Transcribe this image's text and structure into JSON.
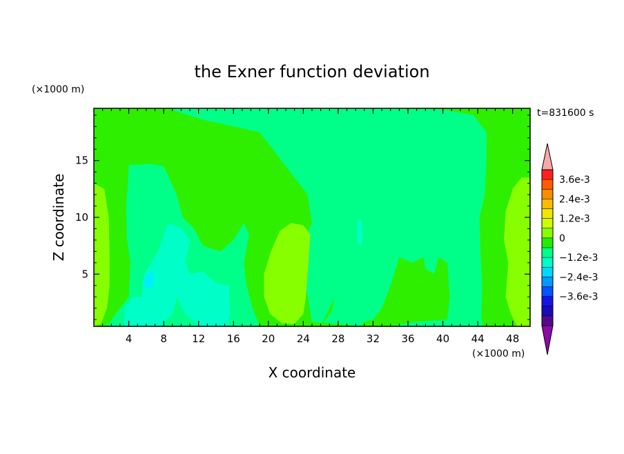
{
  "chart_data": {
    "type": "heatmap",
    "title": "the Exner function deviation",
    "xlabel": "X coordinate",
    "ylabel": "Z coordinate",
    "x_unit": "(×1000 m)",
    "y_unit": "(×1000 m)",
    "time_label": "t=831600 s",
    "xlim": [
      0,
      50
    ],
    "ylim": [
      0.4,
      19.6
    ],
    "x_ticks": [
      4,
      8,
      12,
      16,
      20,
      24,
      28,
      32,
      36,
      40,
      44,
      48
    ],
    "y_ticks": [
      5,
      10,
      15
    ],
    "colorbar": {
      "labels": [
        "3.6e-3",
        "2.4e-3",
        "1.2e-3",
        "0",
        "−1.2e-3",
        "−2.4e-3",
        "−3.6e-3"
      ],
      "levels": [
        0.0036,
        0.0024,
        0.0012,
        0,
        -0.0012,
        -0.0024,
        -0.0036
      ],
      "colors": [
        "#ff2020",
        "#ff5a00",
        "#ff8c00",
        "#ffbb00",
        "#f0e600",
        "#ccff00",
        "#88ff00",
        "#22ee00",
        "#00ff88",
        "#00ffc8",
        "#00d8ff",
        "#0099ff",
        "#0055ff",
        "#1515e8",
        "#1a0ab8",
        "#55098a"
      ],
      "over_color": "#f7a9a9",
      "under_color": "#8b0aa8"
    },
    "fill_colors": {
      "background": "#2eef00",
      "cyan_green": "#00ff88",
      "aqua": "#00ffc8",
      "cyan": "#00f0ff",
      "yellow_green": "#88ff00"
    },
    "regions": [
      {
        "level": "cyan_green",
        "points": [
          [
            8.5,
            19.6
          ],
          [
            30,
            19.6
          ],
          [
            40,
            19.5
          ],
          [
            43.5,
            19.0
          ],
          [
            45,
            17.5
          ],
          [
            45,
            15
          ],
          [
            44.8,
            12
          ],
          [
            44.2,
            10
          ],
          [
            44.3,
            7
          ],
          [
            44.5,
            4
          ],
          [
            44.4,
            1
          ],
          [
            44.6,
            0.4
          ],
          [
            31,
            0.4
          ],
          [
            25,
            0.8
          ],
          [
            24.5,
            3
          ],
          [
            23.8,
            6
          ],
          [
            24,
            8
          ],
          [
            25,
            9.5
          ],
          [
            24.5,
            12
          ],
          [
            22,
            14.5
          ],
          [
            20,
            16.5
          ],
          [
            19,
            17.5
          ],
          [
            16,
            18
          ],
          [
            12.5,
            18.6
          ],
          [
            10,
            19.2
          ]
        ]
      },
      {
        "level": "cyan_green",
        "points": [
          [
            4,
            14.6
          ],
          [
            6.5,
            14.7
          ],
          [
            8,
            14.5
          ],
          [
            9.5,
            12
          ],
          [
            10.2,
            10
          ],
          [
            11.5,
            9
          ],
          [
            12.5,
            7.5
          ],
          [
            14.5,
            7.0
          ],
          [
            16,
            8
          ],
          [
            17.2,
            9.5
          ],
          [
            17.8,
            8.5
          ],
          [
            17.2,
            6
          ],
          [
            17.5,
            4
          ],
          [
            18.2,
            2
          ],
          [
            19,
            0.4
          ],
          [
            1.5,
            0.4
          ],
          [
            2.5,
            1.5
          ],
          [
            4,
            3
          ],
          [
            4.2,
            6
          ],
          [
            3.8,
            8
          ],
          [
            3.7,
            11
          ],
          [
            3.9,
            13
          ]
        ]
      },
      {
        "level": "background",
        "points": [
          [
            30.5,
            0.4
          ],
          [
            34,
            0.4
          ],
          [
            37,
            0.8
          ],
          [
            40.5,
            1.0
          ],
          [
            40.8,
            3
          ],
          [
            40.5,
            6
          ],
          [
            39.5,
            6.5
          ],
          [
            39,
            5
          ],
          [
            38,
            5.5
          ],
          [
            37.8,
            6.5
          ],
          [
            36.5,
            6
          ],
          [
            35,
            6.5
          ],
          [
            34,
            4
          ],
          [
            33,
            2
          ],
          [
            32,
            1
          ],
          [
            31,
            0.8
          ]
        ]
      },
      {
        "level": "background",
        "points": [
          [
            26,
            0.4
          ],
          [
            27.3,
            1.8
          ],
          [
            27.6,
            3
          ],
          [
            27.0,
            2
          ],
          [
            26.3,
            0.9
          ]
        ]
      },
      {
        "level": "aqua",
        "points": [
          [
            5.5,
            3.0
          ],
          [
            5.8,
            5.0
          ],
          [
            7.5,
            7.2
          ],
          [
            8.5,
            9.5
          ],
          [
            10,
            9.0
          ],
          [
            11,
            8.0
          ],
          [
            10.5,
            6.0
          ],
          [
            11,
            5.0
          ],
          [
            12.5,
            5.2
          ],
          [
            14,
            4.2
          ],
          [
            15.5,
            4.0
          ],
          [
            15.6,
            1.5
          ],
          [
            15.3,
            0.4
          ],
          [
            12,
            0.4
          ],
          [
            10.5,
            1.5
          ],
          [
            9.5,
            3.0
          ],
          [
            9.0,
            1.5
          ],
          [
            7.5,
            0.4
          ],
          [
            3.5,
            0.4
          ],
          [
            3.5,
            2.0
          ],
          [
            4.5,
            3.0
          ]
        ]
      },
      {
        "level": "cyan",
        "points": [
          [
            5.6,
            4.3
          ],
          [
            6.0,
            5.0
          ],
          [
            6.7,
            5.2
          ],
          [
            7.0,
            4.5
          ],
          [
            6.6,
            3.8
          ],
          [
            6.0,
            3.7
          ]
        ]
      },
      {
        "level": "aqua",
        "points": [
          [
            30.2,
            9.6
          ],
          [
            30.6,
            9.9
          ],
          [
            30.8,
            8.5
          ],
          [
            30.6,
            7.4
          ],
          [
            30.2,
            7.8
          ]
        ]
      },
      {
        "level": "yellow_green",
        "points": [
          [
            19.5,
            5
          ],
          [
            20.3,
            7
          ],
          [
            21.3,
            8.8
          ],
          [
            22.6,
            9.5
          ],
          [
            24,
            9.3
          ],
          [
            24.8,
            8.5
          ],
          [
            24.6,
            6
          ],
          [
            24.3,
            3
          ],
          [
            24.0,
            1.5
          ],
          [
            23.0,
            0.6
          ],
          [
            21.5,
            0.7
          ],
          [
            20.2,
            1.5
          ],
          [
            19.5,
            3
          ]
        ]
      },
      {
        "level": "yellow_green",
        "points": [
          [
            0,
            13
          ],
          [
            1.2,
            12.5
          ],
          [
            1.7,
            10
          ],
          [
            1.8,
            7
          ],
          [
            1.8,
            4
          ],
          [
            1.5,
            2
          ],
          [
            0.8,
            0.6
          ],
          [
            0,
            0.4
          ]
        ]
      },
      {
        "level": "yellow_green",
        "points": [
          [
            50,
            13.5
          ],
          [
            49,
            13.5
          ],
          [
            48.0,
            12.5
          ],
          [
            47.2,
            10.5
          ],
          [
            47.0,
            8
          ],
          [
            47.5,
            6
          ],
          [
            47.2,
            3
          ],
          [
            47.8,
            1.5
          ],
          [
            48.5,
            0.4
          ],
          [
            50,
            0.4
          ]
        ]
      }
    ],
    "grid": false,
    "legend": "colorbar-right"
  }
}
